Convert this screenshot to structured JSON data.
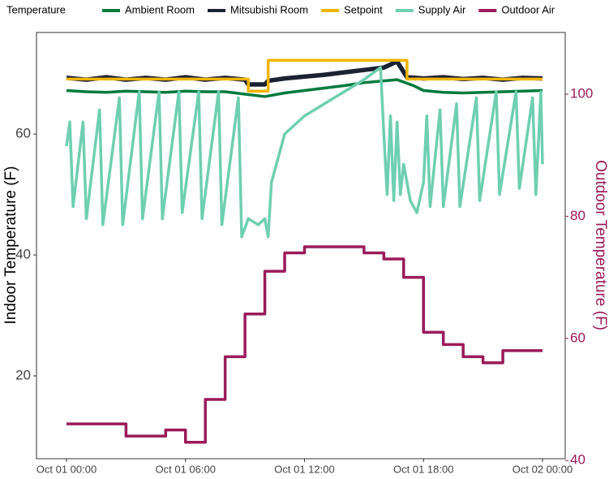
{
  "chart_data": {
    "type": "line",
    "legend_title": "Temperature",
    "legend": "top",
    "grid": true,
    "y_label": "Indoor Temperature (F)",
    "y2_label": "Outdoor Temperature (F)",
    "y2_color": "#9b1b5a",
    "xlim": [
      "Oct 01 00:00",
      "Oct 02 00:00"
    ],
    "xticks": [
      "Oct 01 00:00",
      "Oct 01 06:00",
      "Oct 01 12:00",
      "Oct 01 18:00",
      "Oct 02 00:00"
    ],
    "ylim": [
      6.3,
      76.8
    ],
    "yticks": [
      20,
      40,
      60
    ],
    "y2lim": [
      40.3,
      110.1
    ],
    "y2ticks": [
      40,
      60,
      80,
      100
    ],
    "series": [
      {
        "name": "Ambient Room",
        "color": "#007a3d",
        "width": 3.5,
        "x": [
          "Oct 01 00:00",
          "Oct 01 01:00",
          "Oct 01 02:00",
          "Oct 01 03:00",
          "Oct 01 04:00",
          "Oct 01 05:00",
          "Oct 01 06:00",
          "Oct 01 07:00",
          "Oct 01 08:00",
          "Oct 01 09:00",
          "Oct 01 10:00",
          "Oct 01 11:00",
          "Oct 01 12:00",
          "Oct 01 13:00",
          "Oct 01 14:00",
          "Oct 01 15:00",
          "Oct 01 16:00",
          "Oct 01 16:40",
          "Oct 01 17:30",
          "Oct 01 18:00",
          "Oct 01 19:00",
          "Oct 01 20:00",
          "Oct 01 21:00",
          "Oct 01 22:00",
          "Oct 01 23:00",
          "Oct 02 00:00"
        ],
        "values": [
          67.2,
          67.0,
          66.9,
          67.1,
          67.0,
          66.9,
          67.1,
          67.0,
          67.0,
          66.6,
          66.2,
          66.8,
          67.2,
          67.6,
          68.0,
          68.5,
          68.8,
          69.0,
          68.0,
          67.2,
          66.9,
          66.8,
          66.9,
          67.0,
          67.1,
          67.2
        ]
      },
      {
        "name": "Mitsubishi Room",
        "color": "#1a2233",
        "width": 5.5,
        "x": [
          "Oct 01 00:00",
          "Oct 01 01:00",
          "Oct 01 02:00",
          "Oct 01 03:00",
          "Oct 01 04:00",
          "Oct 01 05:00",
          "Oct 01 06:00",
          "Oct 01 07:00",
          "Oct 01 08:00",
          "Oct 01 09:00",
          "Oct 01 09:10",
          "Oct 01 10:00",
          "Oct 01 10:10",
          "Oct 01 11:00",
          "Oct 01 12:00",
          "Oct 01 13:00",
          "Oct 01 14:00",
          "Oct 01 15:00",
          "Oct 01 16:00",
          "Oct 01 16:40",
          "Oct 01 17:10",
          "Oct 01 18:00",
          "Oct 01 19:00",
          "Oct 01 20:00",
          "Oct 01 21:00",
          "Oct 01 22:00",
          "Oct 01 23:00",
          "Oct 02 00:00"
        ],
        "values": [
          69.3,
          69.0,
          69.4,
          69.0,
          69.3,
          69.0,
          69.4,
          69.0,
          69.3,
          69.0,
          68.2,
          68.2,
          68.8,
          69.2,
          69.5,
          69.8,
          70.2,
          70.6,
          71.0,
          72.0,
          69.4,
          69.2,
          69.4,
          69.1,
          69.3,
          69.0,
          69.3,
          69.2
        ]
      },
      {
        "name": "Setpoint",
        "color": "#f0b400",
        "width": 3.5,
        "step": true,
        "x": [
          "Oct 01 00:00",
          "Oct 01 09:10",
          "Oct 01 10:10",
          "Oct 01 17:10",
          "Oct 02 00:00"
        ],
        "values": [
          69.1,
          67.1,
          72.2,
          69.1,
          69.1
        ]
      },
      {
        "name": "Supply Air",
        "color": "#6fcfb0",
        "width": 3.5,
        "x": [
          "Oct 01 00:00",
          "Oct 01 00:10",
          "Oct 01 00:20",
          "Oct 01 00:50",
          "Oct 01 01:00",
          "Oct 01 01:40",
          "Oct 01 01:50",
          "Oct 01 02:40",
          "Oct 01 02:50",
          "Oct 01 03:40",
          "Oct 01 03:50",
          "Oct 01 04:40",
          "Oct 01 04:50",
          "Oct 01 05:40",
          "Oct 01 05:50",
          "Oct 01 06:40",
          "Oct 01 06:50",
          "Oct 01 07:40",
          "Oct 01 07:50",
          "Oct 01 08:40",
          "Oct 01 08:50",
          "Oct 01 09:10",
          "Oct 01 09:40",
          "Oct 01 10:00",
          "Oct 01 10:10",
          "Oct 01 10:20",
          "Oct 01 11:00",
          "Oct 01 12:00",
          "Oct 01 13:00",
          "Oct 01 14:00",
          "Oct 01 15:00",
          "Oct 01 15:50",
          "Oct 01 16:00",
          "Oct 01 16:10",
          "Oct 01 16:20",
          "Oct 01 16:30",
          "Oct 01 16:40",
          "Oct 01 16:50",
          "Oct 01 17:00",
          "Oct 01 17:20",
          "Oct 01 17:40",
          "Oct 01 18:00",
          "Oct 01 18:10",
          "Oct 01 18:20",
          "Oct 01 18:50",
          "Oct 01 19:00",
          "Oct 01 19:40",
          "Oct 01 19:50",
          "Oct 01 20:40",
          "Oct 01 20:50",
          "Oct 01 21:40",
          "Oct 01 21:50",
          "Oct 01 22:40",
          "Oct 01 22:50",
          "Oct 01 23:30",
          "Oct 01 23:40",
          "Oct 01 23:55",
          "Oct 02 00:00"
        ],
        "values": [
          58,
          62,
          48,
          62,
          46,
          64,
          45,
          66,
          45,
          67,
          46,
          67,
          46,
          67,
          47,
          67,
          46,
          67,
          45,
          66,
          43,
          46,
          45,
          46,
          43,
          52,
          60,
          63,
          65,
          67,
          69,
          71,
          60,
          50,
          63,
          49,
          62,
          50,
          55,
          49,
          47,
          52,
          63,
          48,
          64,
          48,
          65,
          48,
          66,
          49,
          67,
          50,
          67,
          51,
          66,
          50,
          67,
          55
        ]
      },
      {
        "name": "Outdoor Air",
        "color": "#9b1b5a",
        "width": 3.5,
        "step": true,
        "axis": "y2",
        "x": [
          "Oct 01 00:00",
          "Oct 01 03:00",
          "Oct 01 05:00",
          "Oct 01 06:00",
          "Oct 01 07:00",
          "Oct 01 08:00",
          "Oct 01 09:00",
          "Oct 01 10:00",
          "Oct 01 11:00",
          "Oct 01 12:00",
          "Oct 01 15:00",
          "Oct 01 16:00",
          "Oct 01 17:00",
          "Oct 01 18:00",
          "Oct 01 19:00",
          "Oct 01 20:00",
          "Oct 01 21:00",
          "Oct 01 22:00",
          "Oct 02 00:00"
        ],
        "values": [
          46,
          44,
          45,
          43,
          50,
          57,
          64,
          71,
          74,
          75,
          74,
          73,
          70,
          61,
          59,
          57,
          56,
          58,
          58
        ]
      }
    ]
  }
}
